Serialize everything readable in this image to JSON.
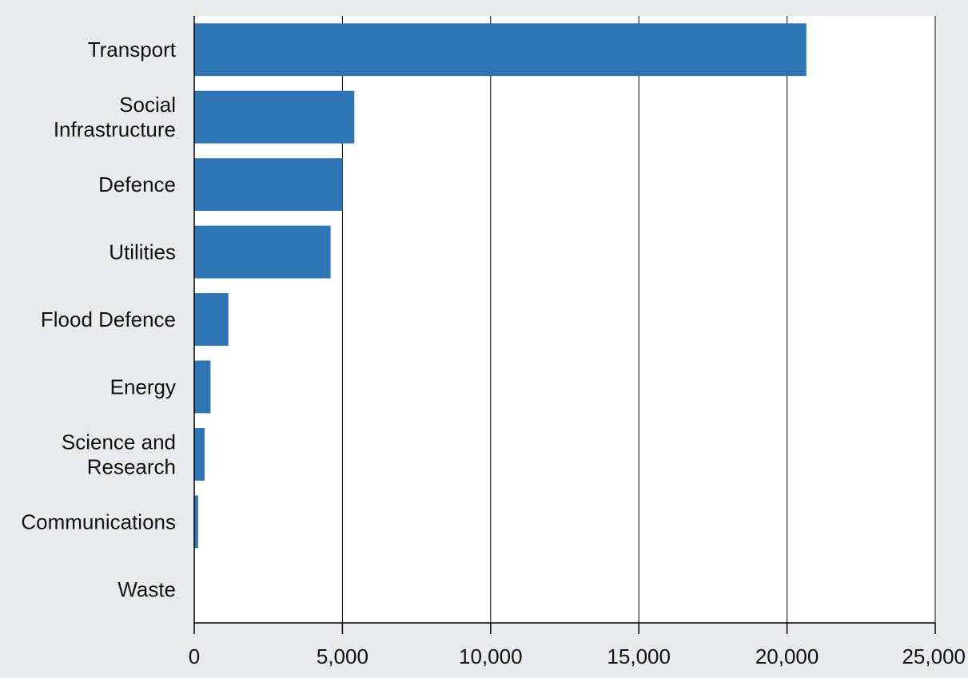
{
  "chart_data": {
    "type": "bar",
    "orientation": "horizontal",
    "title": "",
    "xlabel": "",
    "ylabel": "",
    "categories": [
      [
        "Transport"
      ],
      [
        "Social",
        "Infrastructure"
      ],
      [
        "Defence"
      ],
      [
        "Utilities"
      ],
      [
        "Flood Defence"
      ],
      [
        "Energy"
      ],
      [
        "Science and",
        "Research"
      ],
      [
        "Communications"
      ],
      [
        "Waste"
      ]
    ],
    "values": [
      20650,
      5400,
      5000,
      4600,
      1150,
      550,
      350,
      130,
      0
    ],
    "xlim": [
      0,
      25000
    ],
    "xticks": [
      0,
      5000,
      10000,
      15000,
      20000,
      25000
    ],
    "xtick_labels": [
      "0",
      "5,000",
      "10,000",
      "15,000",
      "20,000",
      "25,000"
    ],
    "grid": "vertical",
    "legend": "none",
    "bar_color": "#2e75b6",
    "plot_background": "#ffffff",
    "page_background": "#eaebed"
  }
}
